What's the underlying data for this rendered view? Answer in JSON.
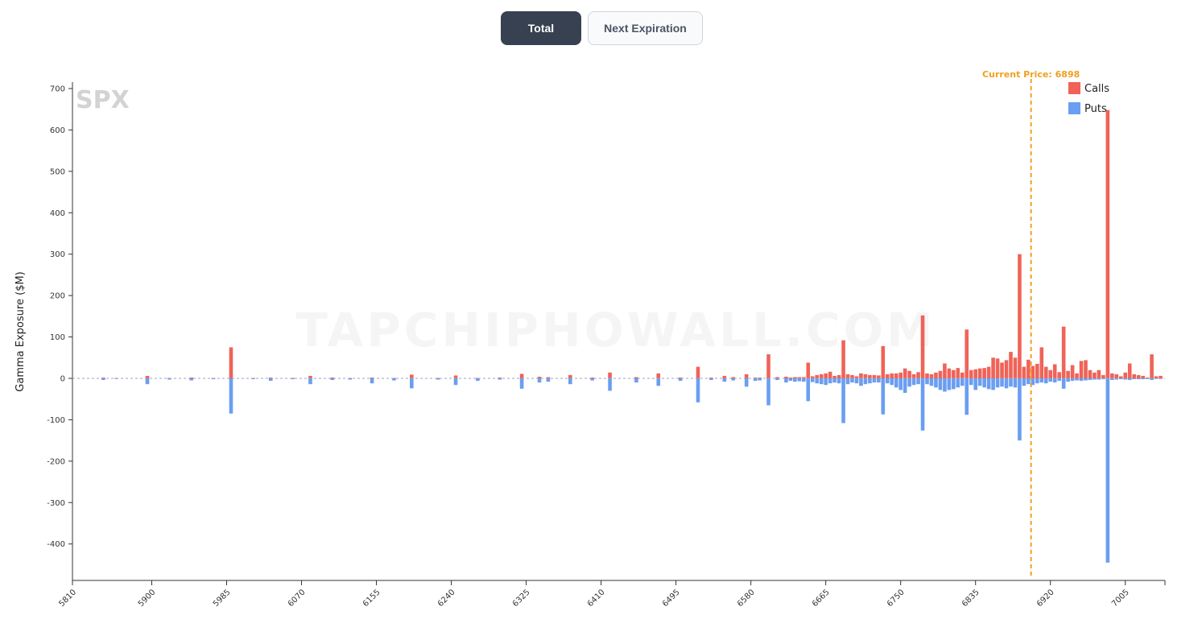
{
  "controls": {
    "total_label": "Total",
    "next_expiration_label": "Next Expiration"
  },
  "colors": {
    "calls": "#ef6358",
    "puts": "#6a9ef2",
    "current_price": "#f0a020",
    "active_button": "#374151"
  },
  "chart_data": {
    "type": "bar",
    "symbol": "SPX",
    "watermark": "TAPCHIPHOWALL.COM",
    "ylabel": "Gamma Exposure ($M)",
    "ylim": [
      -490,
      710
    ],
    "xlim": [
      5810,
      7050
    ],
    "yticks": [
      700,
      600,
      500,
      400,
      300,
      200,
      100,
      0,
      -100,
      -200,
      -300,
      -400
    ],
    "xticks": [
      5810,
      5900,
      5985,
      6070,
      6155,
      6240,
      6325,
      6410,
      6495,
      6580,
      6665,
      6750,
      6835,
      6920,
      7005
    ],
    "current_price": 6898,
    "current_price_label": "Current Price: 6898",
    "legend": [
      "Calls",
      "Puts"
    ],
    "legend_position": "top-right",
    "series": [
      {
        "name": "Calls",
        "x": [
          5845,
          5860,
          5895,
          5920,
          5945,
          5970,
          5990,
          6015,
          6035,
          6060,
          6080,
          6105,
          6125,
          6150,
          6175,
          6195,
          6225,
          6245,
          6270,
          6295,
          6320,
          6340,
          6350,
          6375,
          6400,
          6420,
          6450,
          6475,
          6500,
          6520,
          6535,
          6550,
          6560,
          6575,
          6585,
          6590,
          6600,
          6610,
          6620,
          6625,
          6630,
          6635,
          6640,
          6645,
          6650,
          6655,
          6660,
          6665,
          6670,
          6675,
          6680,
          6685,
          6690,
          6695,
          6700,
          6705,
          6710,
          6715,
          6720,
          6725,
          6730,
          6735,
          6740,
          6745,
          6750,
          6755,
          6760,
          6765,
          6770,
          6775,
          6780,
          6785,
          6790,
          6795,
          6800,
          6805,
          6810,
          6815,
          6820,
          6825,
          6830,
          6835,
          6840,
          6845,
          6850,
          6855,
          6860,
          6865,
          6870,
          6875,
          6880,
          6885,
          6890,
          6895,
          6900,
          6905,
          6910,
          6915,
          6920,
          6925,
          6930,
          6935,
          6940,
          6945,
          6950,
          6955,
          6960,
          6965,
          6970,
          6975,
          6980,
          6985,
          6990,
          6995,
          7000,
          7005,
          7010,
          7015,
          7020,
          7025,
          7030,
          7035,
          7040,
          7045
        ],
        "values": [
          2,
          1,
          6,
          1,
          2,
          1,
          75,
          1,
          2,
          1,
          6,
          2,
          1,
          2,
          1,
          9,
          1,
          7,
          1,
          2,
          11,
          4,
          3,
          8,
          2,
          14,
          3,
          12,
          2,
          28,
          2,
          6,
          3,
          10,
          2,
          2,
          58,
          3,
          4,
          2,
          3,
          3,
          3,
          38,
          5,
          8,
          10,
          12,
          16,
          6,
          8,
          92,
          10,
          8,
          5,
          12,
          10,
          8,
          8,
          7,
          78,
          10,
          12,
          12,
          14,
          24,
          18,
          10,
          15,
          152,
          12,
          10,
          14,
          18,
          36,
          24,
          20,
          25,
          14,
          118,
          20,
          22,
          24,
          25,
          28,
          50,
          48,
          38,
          44,
          64,
          50,
          300,
          28,
          45,
          30,
          35,
          75,
          28,
          20,
          34,
          15,
          125,
          18,
          32,
          12,
          42,
          44,
          20,
          14,
          20,
          8,
          648,
          12,
          10,
          5,
          14,
          36,
          10,
          8,
          6,
          2,
          58,
          5,
          6
        ]
      },
      {
        "name": "Puts",
        "x": [
          5845,
          5860,
          5895,
          5920,
          5945,
          5970,
          5990,
          6015,
          6035,
          6060,
          6080,
          6105,
          6125,
          6150,
          6175,
          6195,
          6225,
          6245,
          6270,
          6295,
          6320,
          6340,
          6350,
          6375,
          6400,
          6420,
          6450,
          6475,
          6500,
          6520,
          6535,
          6550,
          6560,
          6575,
          6585,
          6590,
          6600,
          6610,
          6620,
          6625,
          6630,
          6635,
          6640,
          6645,
          6650,
          6655,
          6660,
          6665,
          6670,
          6675,
          6680,
          6685,
          6690,
          6695,
          6700,
          6705,
          6710,
          6715,
          6720,
          6725,
          6730,
          6735,
          6740,
          6745,
          6750,
          6755,
          6760,
          6765,
          6770,
          6775,
          6780,
          6785,
          6790,
          6795,
          6800,
          6805,
          6810,
          6815,
          6820,
          6825,
          6830,
          6835,
          6840,
          6845,
          6850,
          6855,
          6860,
          6865,
          6870,
          6875,
          6880,
          6885,
          6890,
          6895,
          6900,
          6905,
          6910,
          6915,
          6920,
          6925,
          6930,
          6935,
          6940,
          6945,
          6950,
          6955,
          6960,
          6965,
          6970,
          6975,
          6980,
          6985,
          6990,
          6995,
          7000,
          7005,
          7010,
          7015,
          7020,
          7025,
          7030,
          7035,
          7040,
          7045
        ],
        "values": [
          -4,
          -1,
          -14,
          -3,
          -5,
          -2,
          -85,
          -2,
          -6,
          -2,
          -14,
          -4,
          -3,
          -12,
          -5,
          -24,
          -3,
          -16,
          -6,
          -3,
          -25,
          -10,
          -8,
          -14,
          -5,
          -30,
          -10,
          -18,
          -6,
          -58,
          -4,
          -8,
          -5,
          -20,
          -6,
          -5,
          -65,
          -4,
          -10,
          -6,
          -8,
          -7,
          -8,
          -55,
          -9,
          -12,
          -14,
          -16,
          -12,
          -10,
          -12,
          -108,
          -14,
          -10,
          -12,
          -18,
          -14,
          -12,
          -10,
          -10,
          -87,
          -12,
          -16,
          -22,
          -28,
          -35,
          -20,
          -16,
          -14,
          -126,
          -14,
          -18,
          -22,
          -28,
          -32,
          -28,
          -26,
          -22,
          -18,
          -88,
          -16,
          -28,
          -18,
          -22,
          -26,
          -28,
          -22,
          -20,
          -24,
          -20,
          -22,
          -150,
          -18,
          -14,
          -16,
          -12,
          -10,
          -12,
          -8,
          -10,
          -6,
          -25,
          -8,
          -6,
          -5,
          -6,
          -5,
          -4,
          -3,
          -3,
          -2,
          -445,
          -4,
          -3,
          -2,
          -3,
          -4,
          -2,
          -2,
          -2,
          -1,
          -4,
          -1,
          -1
        ]
      }
    ]
  }
}
